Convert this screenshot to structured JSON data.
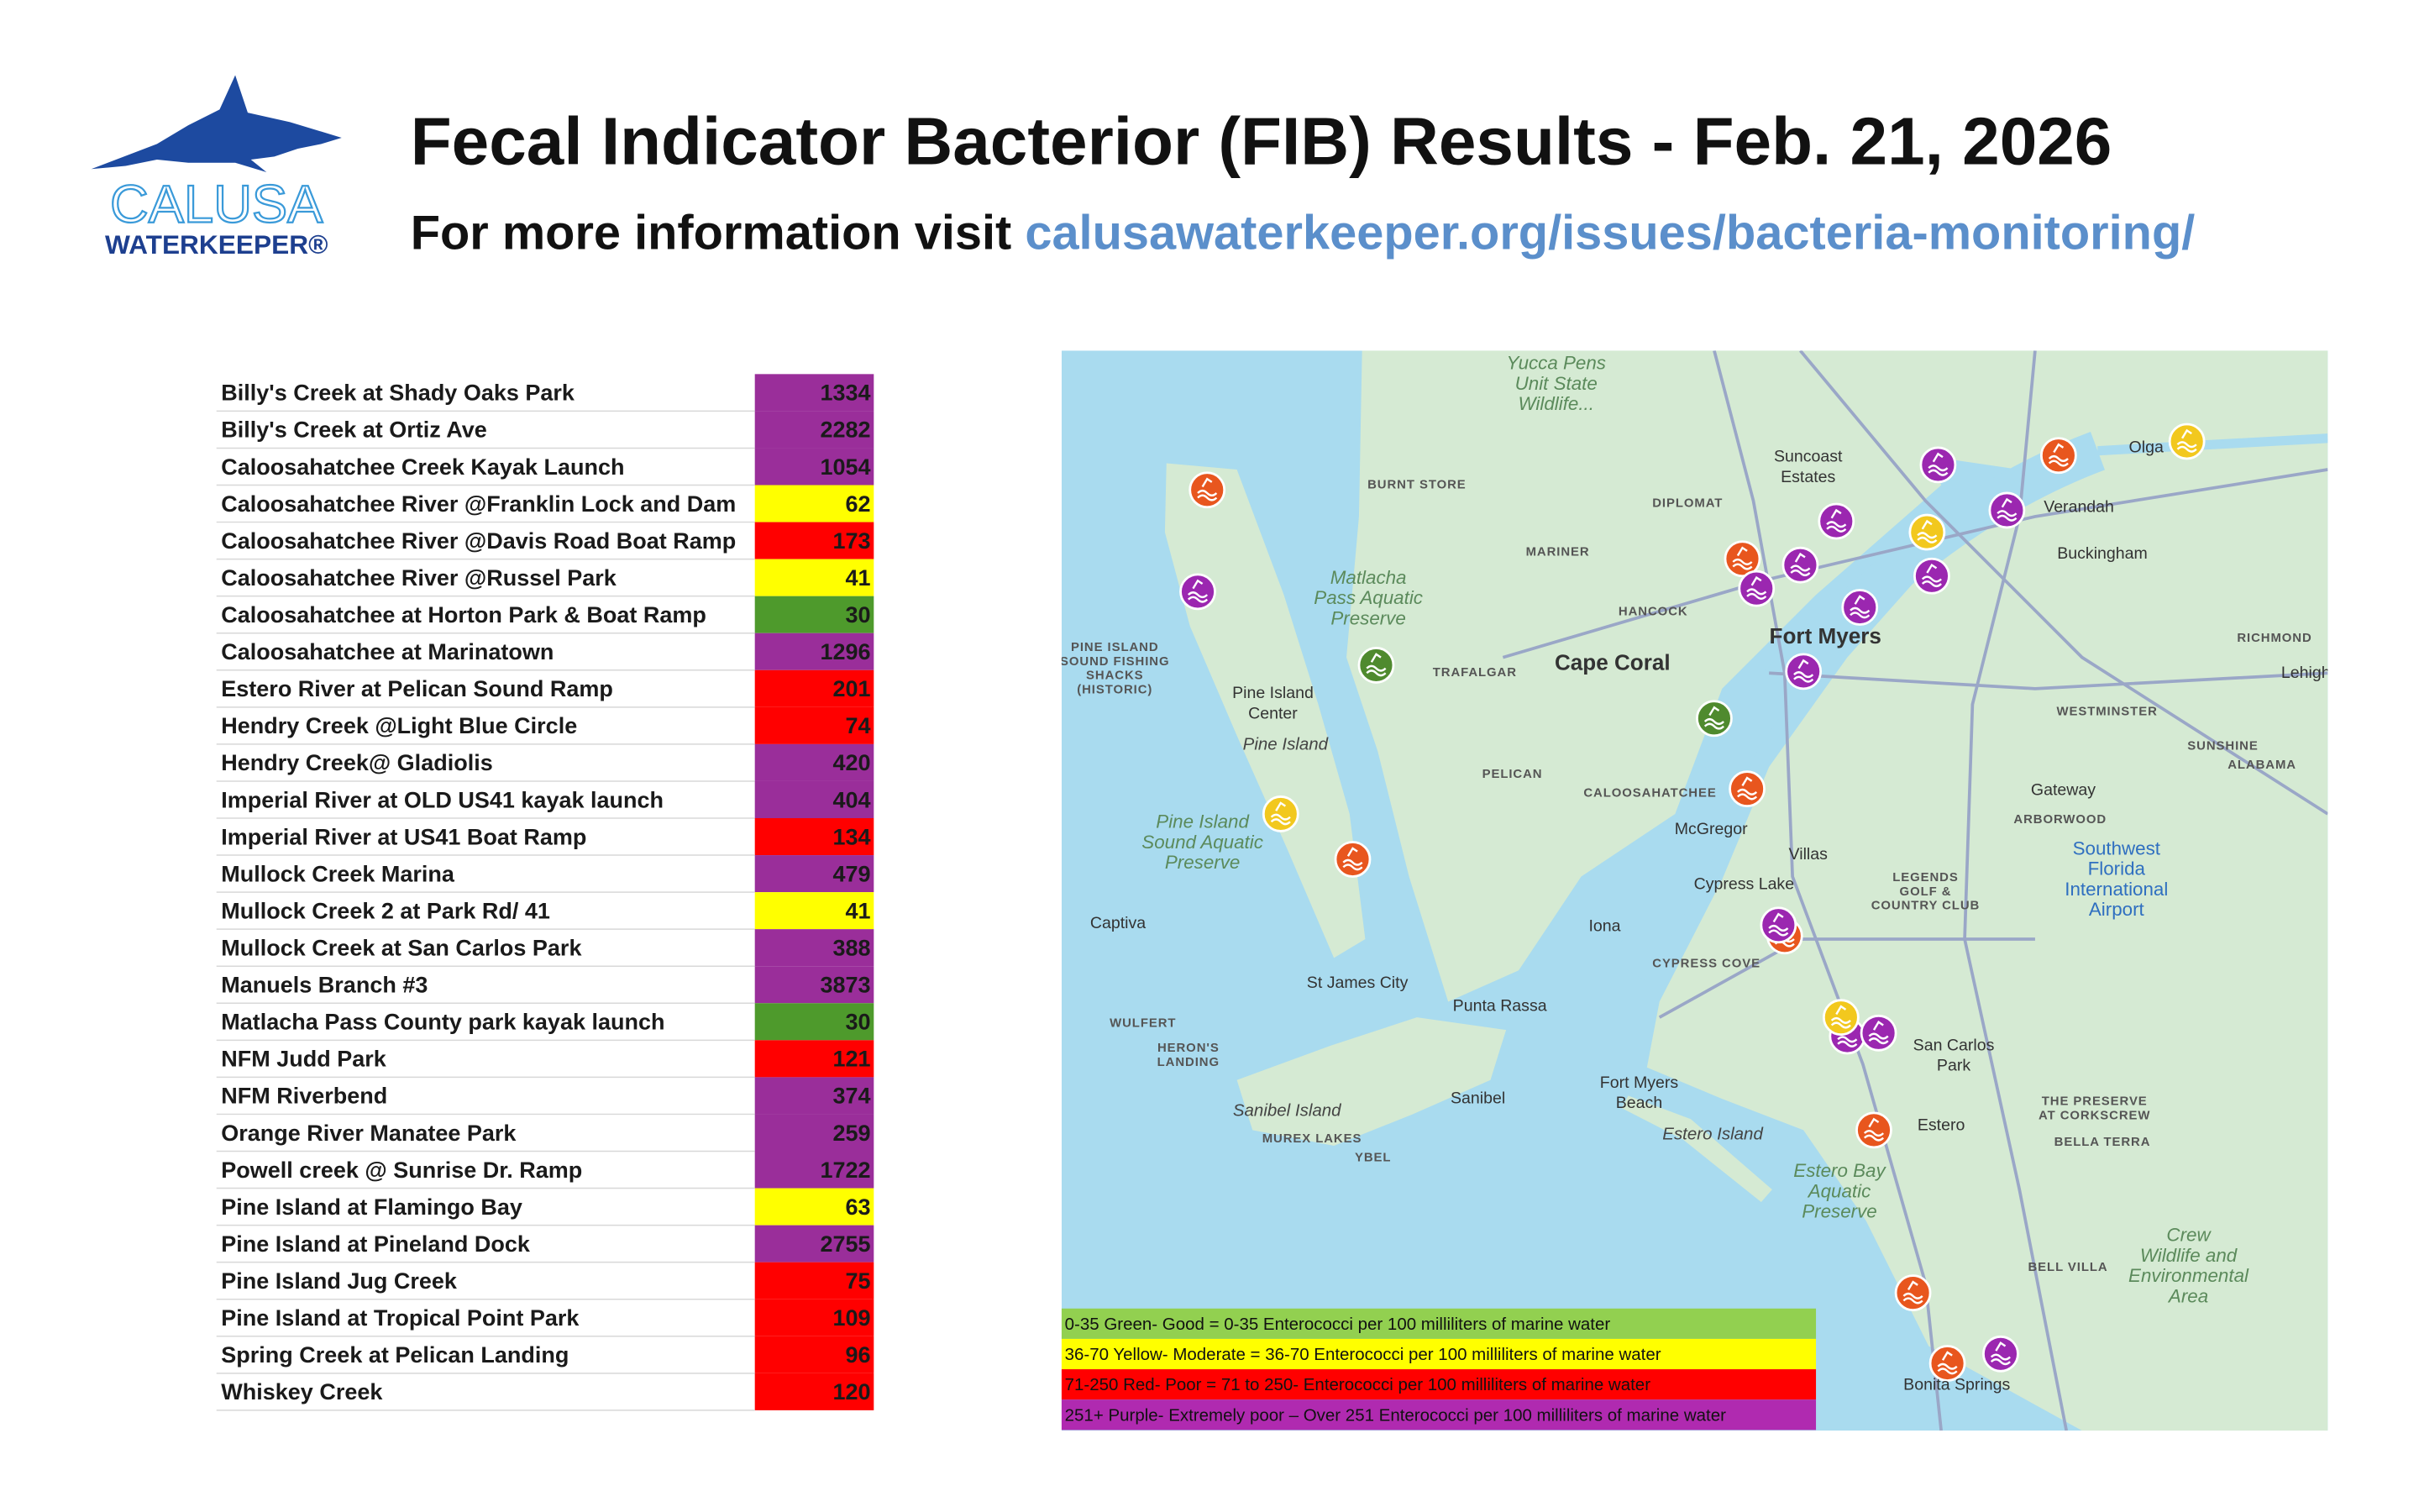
{
  "header": {
    "logo": {
      "name": "CALUSA",
      "subname": "WATERKEEPER®"
    },
    "title": "Fecal Indicator Bacterior (FIB) Results - Feb. 21, 2026",
    "subtitle": "For more information visit ",
    "link": "calusawaterkeeper.org/issues/bacteria-monitoring/"
  },
  "table": {
    "colors": {
      "green": "#4e9a2c",
      "yellow": "#ffff00",
      "red": "#ff0000",
      "purple": "#9a2e9a"
    },
    "rows": [
      {
        "site": "Billy's Creek at Shady Oaks Park",
        "value": 1334,
        "color": "purple"
      },
      {
        "site": "Billy's Creek at Ortiz Ave",
        "value": 2282,
        "color": "purple"
      },
      {
        "site": "Caloosahatchee Creek Kayak Launch",
        "value": 1054,
        "color": "purple"
      },
      {
        "site": "Caloosahatchee River @Franklin Lock and Dam",
        "value": 62,
        "color": "yellow"
      },
      {
        "site": "Caloosahatchee River @Davis Road Boat Ramp",
        "value": 173,
        "color": "red"
      },
      {
        "site": "Caloosahatchee River @Russel Park",
        "value": 41,
        "color": "yellow"
      },
      {
        "site": "Caloosahatchee at Horton Park & Boat Ramp",
        "value": 30,
        "color": "green"
      },
      {
        "site": "Caloosahatchee at Marinatown",
        "value": 1296,
        "color": "purple"
      },
      {
        "site": "Estero River at Pelican Sound Ramp",
        "value": 201,
        "color": "red"
      },
      {
        "site": "Hendry Creek @Light Blue Circle",
        "value": 74,
        "color": "red"
      },
      {
        "site": "Hendry Creek@ Gladiolis",
        "value": 420,
        "color": "purple"
      },
      {
        "site": "Imperial River at OLD US41 kayak launch",
        "value": 404,
        "color": "purple"
      },
      {
        "site": "Imperial River at US41 Boat Ramp",
        "value": 134,
        "color": "red"
      },
      {
        "site": "Mullock Creek Marina",
        "value": 479,
        "color": "purple"
      },
      {
        "site": "Mullock Creek 2 at Park Rd/ 41",
        "value": 41,
        "color": "yellow"
      },
      {
        "site": "Mullock Creek at San Carlos Park",
        "value": 388,
        "color": "purple"
      },
      {
        "site": "Manuels Branch #3",
        "value": 3873,
        "color": "purple"
      },
      {
        "site": "Matlacha Pass County park kayak launch",
        "value": 30,
        "color": "green"
      },
      {
        "site": "NFM Judd Park",
        "value": 121,
        "color": "red"
      },
      {
        "site": "NFM Riverbend",
        "value": 374,
        "color": "purple"
      },
      {
        "site": "Orange River Manatee Park",
        "value": 259,
        "color": "purple"
      },
      {
        "site": "Powell creek @ Sunrise Dr. Ramp",
        "value": 1722,
        "color": "purple"
      },
      {
        "site": "Pine Island at Flamingo Bay",
        "value": 63,
        "color": "yellow"
      },
      {
        "site": "Pine Island at Pineland Dock",
        "value": 2755,
        "color": "purple"
      },
      {
        "site": "Pine Island Jug Creek",
        "value": 75,
        "color": "red"
      },
      {
        "site": "Pine Island at Tropical Point Park",
        "value": 109,
        "color": "red"
      },
      {
        "site": "Spring Creek at Pelican Landing",
        "value": 96,
        "color": "red"
      },
      {
        "site": "Whiskey Creek",
        "value": 120,
        "color": "red"
      }
    ]
  },
  "map": {
    "legend": [
      {
        "text": "0-35   Green- Good = 0-35 Enterococci per 100 milliliters of marine water",
        "color": "#92d050"
      },
      {
        "text": "36-70    Yellow- Moderate = 36-70 Enterococci per 100 milliliters of marine water",
        "color": "#ffff00"
      },
      {
        "text": "71-250   Red- Poor = 71 to 250-  Enterococci per 100 milliliters of marine water",
        "color": "#ff0000"
      },
      {
        "text": "251+  Purple- Extremely poor – Over 251 Enterococci per 100 milliliters of marine water",
        "color": "#b02ab0"
      }
    ],
    "labels": [
      [
        "Yucca Pens",
        "Unit State",
        "Wildlife..."
      ],
      [
        "Cape Coral"
      ],
      [
        "Fort Myers"
      ],
      [
        "Pine Island",
        "Center"
      ],
      [
        "Pine Island"
      ],
      [
        "Captiva"
      ],
      [
        "St James City"
      ],
      [
        "Punta Rassa"
      ],
      [
        "Sanibel"
      ],
      [
        "Sanibel Island"
      ],
      [
        "Iona"
      ],
      [
        "McGregor"
      ],
      [
        "Cypress Lake"
      ],
      [
        "Villas"
      ],
      [
        "San Carlos",
        "Park"
      ],
      [
        "Estero"
      ],
      [
        "Estero Island"
      ],
      [
        "Fort Myers",
        "Beach"
      ],
      [
        "Bonita Springs"
      ],
      [
        "Gateway"
      ],
      [
        "Buckingham"
      ],
      [
        "Verandah"
      ],
      [
        "Olga"
      ],
      [
        "Suncoast",
        "Estates"
      ],
      [
        "Matlacha",
        "Pass Aquatic",
        "Preserve"
      ],
      [
        "Pine Island",
        "Sound Aquatic",
        "Preserve"
      ],
      [
        "Estero Bay",
        "Aquatic",
        "Preserve"
      ],
      [
        "Southwest",
        "Florida",
        "International",
        "Airport"
      ],
      [
        "Crew",
        "Wildlife and",
        "Environmental",
        "Area"
      ],
      [
        "BURNT STORE"
      ],
      [
        "DIPLOMAT"
      ],
      [
        "MARINER"
      ],
      [
        "HANCOCK"
      ],
      [
        "TRAFALGAR"
      ],
      [
        "PELICAN"
      ],
      [
        "CALOOSAHATCHEE"
      ],
      [
        "CYPRESS COVE"
      ],
      [
        "WULFERT"
      ],
      [
        "HERON'S",
        "LANDING"
      ],
      [
        "MUREX LAKES"
      ],
      [
        "YBEL"
      ],
      [
        "PINE ISLAND",
        "SOUND FISHING",
        "SHACKS",
        "(HISTORIC)"
      ],
      [
        "RICHMOND"
      ],
      [
        "WESTMINSTER"
      ],
      [
        "SUNSHINE"
      ],
      [
        "ALABAMA"
      ],
      [
        "ARBORWOOD"
      ],
      [
        "LEGENDS",
        "GOLF &",
        "COUNTRY CLUB"
      ],
      [
        "THE PRESERVE",
        "AT CORKSCREW"
      ],
      [
        "BELLA TERRA"
      ],
      [
        "BELL VILLA"
      ],
      [
        "Lehigh"
      ]
    ]
  }
}
